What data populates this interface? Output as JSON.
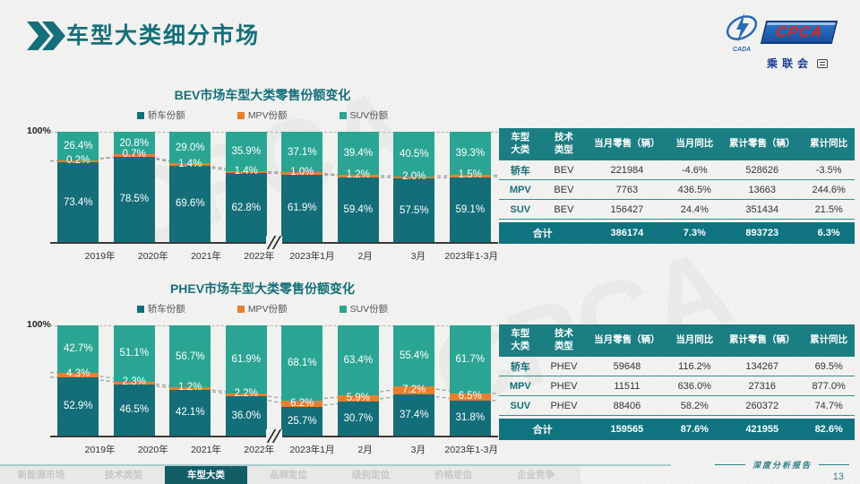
{
  "header": {
    "title": "车型大类细分市场"
  },
  "logo": {
    "text": "CPCA",
    "sub": "乘联会",
    "emblem": "CADA",
    "watermark": "CPCA"
  },
  "colors": {
    "sedan": "#136e79",
    "mpv": "#e77f2d",
    "suv": "#2ba593",
    "accent": "#156f79",
    "table_header": "#1b7e82",
    "table_total": "#0f7380",
    "trend_line": "#9a9a9a"
  },
  "chart_data": [
    {
      "type": "bar",
      "stacked": true,
      "title": "BEV市场车型大类零售份额变化",
      "y_top_label": "100%",
      "ylim": [
        0,
        100
      ],
      "grid": "top-dashed-only",
      "legend_position": "top",
      "axis_break_after": "2022年",
      "categories": [
        "2019年",
        "2020年",
        "2021年",
        "2022年",
        "2023年1月",
        "2月",
        "3月",
        "2023年1-3月"
      ],
      "series": [
        {
          "name": "轿车份额",
          "color_key": "sedan",
          "values": [
            73.4,
            78.5,
            69.6,
            62.8,
            61.9,
            59.4,
            57.5,
            59.1
          ]
        },
        {
          "name": "MPV份额",
          "color_key": "mpv",
          "values": [
            0.2,
            0.7,
            1.4,
            1.4,
            1.0,
            1.2,
            2.0,
            1.5
          ]
        },
        {
          "name": "SUV份额",
          "color_key": "suv",
          "values": [
            26.4,
            20.8,
            29.0,
            35.9,
            37.1,
            39.4,
            40.5,
            39.3
          ]
        }
      ]
    },
    {
      "type": "table",
      "headers": [
        "车型\n大类",
        "技术\n类型",
        "当月零售（辆）",
        "当月同比",
        "累计零售（辆）",
        "累计同比"
      ],
      "rows": [
        [
          "轿车",
          "BEV",
          "221984",
          "-4.6%",
          "528626",
          "-3.5%"
        ],
        [
          "MPV",
          "BEV",
          "7763",
          "436.5%",
          "13663",
          "244.6%"
        ],
        [
          "SUV",
          "BEV",
          "156427",
          "24.4%",
          "351434",
          "21.5%"
        ]
      ],
      "total": [
        "合计",
        "386174",
        "7.3%",
        "893723",
        "6.3%"
      ]
    },
    {
      "type": "bar",
      "stacked": true,
      "title": "PHEV市场车型大类零售份额变化",
      "y_top_label": "100%",
      "ylim": [
        0,
        100
      ],
      "grid": "top-dashed-only",
      "legend_position": "top",
      "axis_break_after": "2022年",
      "categories": [
        "2019年",
        "2020年",
        "2021年",
        "2022年",
        "2023年1月",
        "2月",
        "3月",
        "2023年1-3月"
      ],
      "series": [
        {
          "name": "轿车份额",
          "color_key": "sedan",
          "values": [
            52.9,
            46.5,
            42.1,
            36.0,
            25.7,
            30.7,
            37.4,
            31.8
          ]
        },
        {
          "name": "MPV份额",
          "color_key": "mpv",
          "values": [
            4.3,
            2.3,
            1.2,
            2.2,
            6.2,
            5.9,
            7.2,
            6.5
          ]
        },
        {
          "name": "SUV份额",
          "color_key": "suv",
          "values": [
            42.7,
            51.1,
            56.7,
            61.9,
            68.1,
            63.4,
            55.4,
            61.7
          ]
        }
      ]
    },
    {
      "type": "table",
      "headers": [
        "车型\n大类",
        "技术\n类型",
        "当月零售（辆）",
        "当月同比",
        "累计零售（辆）",
        "累计同比"
      ],
      "rows": [
        [
          "轿车",
          "PHEV",
          "59648",
          "116.2%",
          "134267",
          "69.5%"
        ],
        [
          "MPV",
          "PHEV",
          "11511",
          "636.0%",
          "27316",
          "877.0%"
        ],
        [
          "SUV",
          "PHEV",
          "88406",
          "58.2%",
          "260372",
          "74.7%"
        ]
      ],
      "total": [
        "合计",
        "159565",
        "87.6%",
        "421955",
        "82.6%"
      ]
    }
  ],
  "footer": {
    "nav_items": [
      "新能源市场",
      "技术类型",
      "车型大类",
      "品牌定位",
      "级别定位",
      "价格定位",
      "企业竞争"
    ],
    "active_index": 2,
    "report_label": "深度分析报告",
    "page_number": "13"
  }
}
